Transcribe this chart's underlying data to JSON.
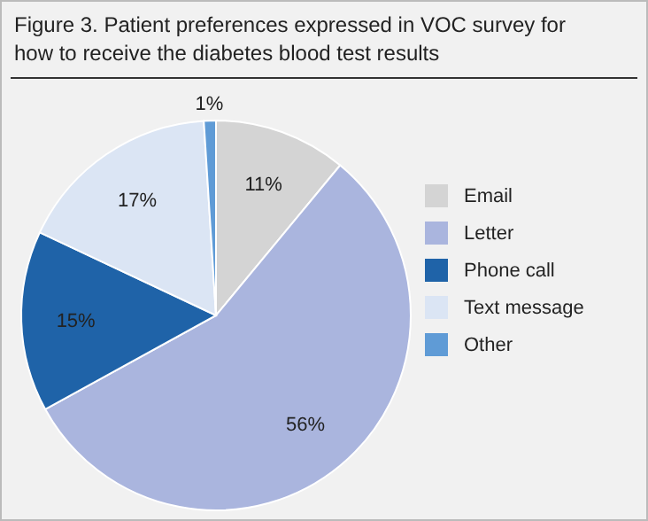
{
  "chart_data": {
    "type": "pie",
    "title": "Figure 3.  Patient preferences expressed in VOC survey for how to receive the diabetes blood test results",
    "categories": [
      "Email",
      "Letter",
      "Phone call",
      "Text message",
      "Other"
    ],
    "values": [
      11,
      56,
      15,
      17,
      1
    ],
    "colors": [
      "#d4d4d4",
      "#aab5de",
      "#1f63a8",
      "#dbe5f4",
      "#5f9bd6"
    ],
    "value_labels": [
      "11%",
      "56%",
      "15%",
      "17%",
      "1%"
    ],
    "legend": "right"
  }
}
